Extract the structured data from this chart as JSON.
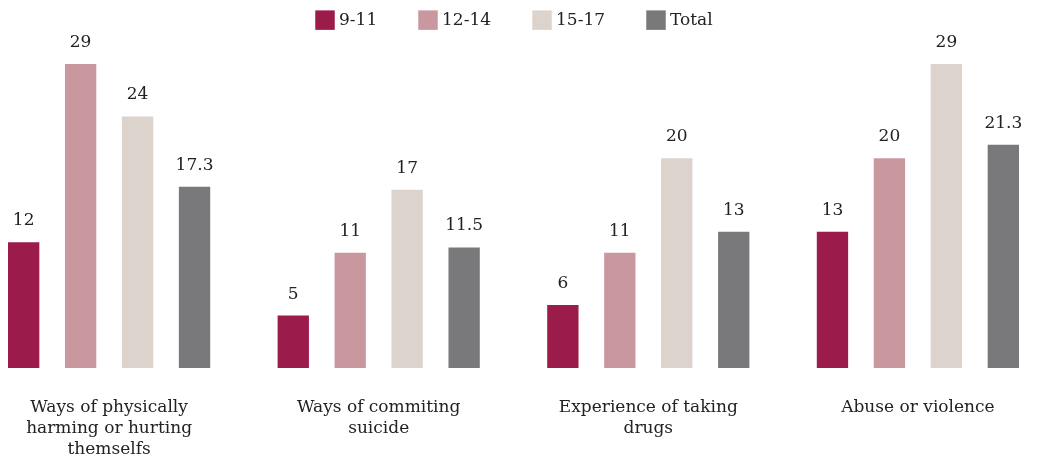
{
  "chart_data": {
    "type": "bar",
    "categories": [
      "Ways of physically harming or hurting themselfs",
      "Ways of commiting suicide",
      "Experience of taking drugs",
      "Abuse or violence"
    ],
    "series": [
      {
        "name": "9-11",
        "color": "#9b1b4b",
        "values": [
          12,
          5,
          6,
          13
        ]
      },
      {
        "name": "12-14",
        "color": "#c9989f",
        "values": [
          29,
          11,
          11,
          20
        ]
      },
      {
        "name": "15-17",
        "color": "#ddd3cd",
        "values": [
          24,
          17,
          20,
          29
        ]
      },
      {
        "name": "Total",
        "color": "#79787a",
        "values": [
          17.3,
          11.5,
          13,
          21.3
        ]
      }
    ],
    "data_labels": true,
    "legend": "top",
    "grid": false
  }
}
